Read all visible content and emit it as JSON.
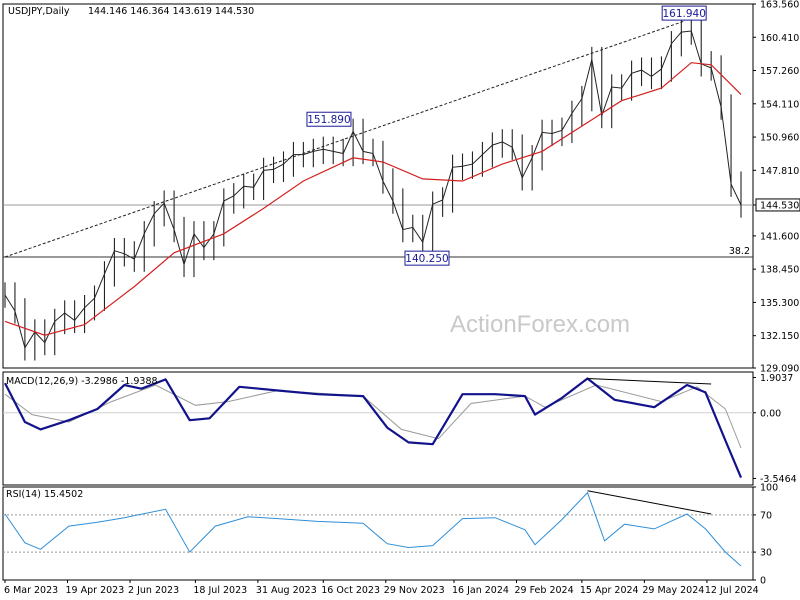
{
  "chart_data": {
    "type": "candlestick",
    "header": {
      "symbol": "USDJPY,Daily",
      "ohlc": "144.146 146.364 143.619 144.530"
    },
    "watermark": "ActionForex.com",
    "price_panel": {
      "ylim": [
        129.09,
        163.56
      ],
      "yticks": [
        "163.560",
        "160.410",
        "157.260",
        "154.110",
        "150.960",
        "147.810",
        "144.530",
        "141.600",
        "138.450",
        "135.300",
        "132.150",
        "129.090"
      ],
      "current_price": "144.530",
      "fib_level": "38.2",
      "fib_price": 139.6,
      "annotations": [
        {
          "text": "161.940",
          "x": "2024-06-26",
          "y": 161.94
        },
        {
          "text": "151.890",
          "x": "2023-10-20",
          "y": 151.89
        },
        {
          "text": "140.250",
          "x": "2023-12-28",
          "y": 140.25
        }
      ],
      "trendline": {
        "from": {
          "x": "2023-03-06",
          "y": 139.6
        },
        "to": {
          "x": "2024-06-26",
          "y": 161.94
        }
      },
      "closes": [
        {
          "x": "2023-03-06",
          "y": 136.0
        },
        {
          "x": "2023-03-13",
          "y": 134.5
        },
        {
          "x": "2023-03-20",
          "y": 131.0
        },
        {
          "x": "2023-03-27",
          "y": 132.5
        },
        {
          "x": "2023-04-03",
          "y": 131.5
        },
        {
          "x": "2023-04-10",
          "y": 133.5
        },
        {
          "x": "2023-04-17",
          "y": 134.3
        },
        {
          "x": "2023-04-24",
          "y": 133.6
        },
        {
          "x": "2023-05-01",
          "y": 134.8
        },
        {
          "x": "2023-05-08",
          "y": 135.7
        },
        {
          "x": "2023-05-15",
          "y": 138.0
        },
        {
          "x": "2023-05-22",
          "y": 140.2
        },
        {
          "x": "2023-05-29",
          "y": 139.9
        },
        {
          "x": "2023-06-05",
          "y": 139.4
        },
        {
          "x": "2023-06-12",
          "y": 141.8
        },
        {
          "x": "2023-06-19",
          "y": 143.7
        },
        {
          "x": "2023-06-26",
          "y": 144.7
        },
        {
          "x": "2023-07-03",
          "y": 142.2
        },
        {
          "x": "2023-07-10",
          "y": 138.9
        },
        {
          "x": "2023-07-17",
          "y": 141.8
        },
        {
          "x": "2023-07-24",
          "y": 140.5
        },
        {
          "x": "2023-07-31",
          "y": 141.8
        },
        {
          "x": "2023-08-07",
          "y": 144.9
        },
        {
          "x": "2023-08-14",
          "y": 145.4
        },
        {
          "x": "2023-08-21",
          "y": 146.3
        },
        {
          "x": "2023-08-28",
          "y": 146.2
        },
        {
          "x": "2023-09-04",
          "y": 147.8
        },
        {
          "x": "2023-09-11",
          "y": 147.9
        },
        {
          "x": "2023-09-18",
          "y": 148.4
        },
        {
          "x": "2023-09-25",
          "y": 149.3
        },
        {
          "x": "2023-10-02",
          "y": 149.3
        },
        {
          "x": "2023-10-09",
          "y": 149.6
        },
        {
          "x": "2023-10-16",
          "y": 149.8
        },
        {
          "x": "2023-10-23",
          "y": 149.6
        },
        {
          "x": "2023-10-30",
          "y": 149.4
        },
        {
          "x": "2023-11-06",
          "y": 151.5
        },
        {
          "x": "2023-11-13",
          "y": 149.6
        },
        {
          "x": "2023-11-20",
          "y": 149.4
        },
        {
          "x": "2023-11-27",
          "y": 146.8
        },
        {
          "x": "2023-12-04",
          "y": 144.9
        },
        {
          "x": "2023-12-11",
          "y": 142.2
        },
        {
          "x": "2023-12-18",
          "y": 142.4
        },
        {
          "x": "2023-12-25",
          "y": 141.0
        },
        {
          "x": "2024-01-01",
          "y": 144.6
        },
        {
          "x": "2024-01-08",
          "y": 145.0
        },
        {
          "x": "2024-01-15",
          "y": 148.1
        },
        {
          "x": "2024-01-22",
          "y": 148.2
        },
        {
          "x": "2024-01-29",
          "y": 148.4
        },
        {
          "x": "2024-02-05",
          "y": 149.3
        },
        {
          "x": "2024-02-12",
          "y": 150.2
        },
        {
          "x": "2024-02-19",
          "y": 150.5
        },
        {
          "x": "2024-02-26",
          "y": 150.0
        },
        {
          "x": "2024-03-04",
          "y": 147.1
        },
        {
          "x": "2024-03-11",
          "y": 149.0
        },
        {
          "x": "2024-03-18",
          "y": 151.4
        },
        {
          "x": "2024-03-25",
          "y": 151.3
        },
        {
          "x": "2024-04-01",
          "y": 151.6
        },
        {
          "x": "2024-04-08",
          "y": 153.2
        },
        {
          "x": "2024-04-15",
          "y": 154.6
        },
        {
          "x": "2024-04-22",
          "y": 158.3
        },
        {
          "x": "2024-04-29",
          "y": 153.0
        },
        {
          "x": "2024-05-06",
          "y": 155.7
        },
        {
          "x": "2024-05-13",
          "y": 155.6
        },
        {
          "x": "2024-05-20",
          "y": 157.0
        },
        {
          "x": "2024-05-27",
          "y": 157.3
        },
        {
          "x": "2024-06-03",
          "y": 156.7
        },
        {
          "x": "2024-06-10",
          "y": 157.4
        },
        {
          "x": "2024-06-17",
          "y": 159.8
        },
        {
          "x": "2024-06-24",
          "y": 160.9
        },
        {
          "x": "2024-07-01",
          "y": 161.0
        },
        {
          "x": "2024-07-08",
          "y": 157.9
        },
        {
          "x": "2024-07-15",
          "y": 157.5
        },
        {
          "x": "2024-07-22",
          "y": 153.8
        },
        {
          "x": "2024-07-29",
          "y": 146.5
        },
        {
          "x": "2024-08-05",
          "y": 144.53
        }
      ],
      "ma": [
        {
          "x": "2023-03-06",
          "y": 133.5
        },
        {
          "x": "2023-04-03",
          "y": 132.2
        },
        {
          "x": "2023-05-01",
          "y": 133.2
        },
        {
          "x": "2023-06-05",
          "y": 136.8
        },
        {
          "x": "2023-07-03",
          "y": 140.0
        },
        {
          "x": "2023-08-07",
          "y": 141.8
        },
        {
          "x": "2023-09-04",
          "y": 144.2
        },
        {
          "x": "2023-10-02",
          "y": 146.8
        },
        {
          "x": "2023-11-06",
          "y": 149.0
        },
        {
          "x": "2023-11-27",
          "y": 148.6
        },
        {
          "x": "2023-12-25",
          "y": 147.0
        },
        {
          "x": "2024-01-22",
          "y": 146.8
        },
        {
          "x": "2024-02-19",
          "y": 148.4
        },
        {
          "x": "2024-03-18",
          "y": 149.6
        },
        {
          "x": "2024-04-15",
          "y": 152.0
        },
        {
          "x": "2024-05-13",
          "y": 154.4
        },
        {
          "x": "2024-06-10",
          "y": 155.6
        },
        {
          "x": "2024-07-01",
          "y": 158.0
        },
        {
          "x": "2024-07-15",
          "y": 157.8
        },
        {
          "x": "2024-08-05",
          "y": 155.0
        }
      ]
    },
    "macd_panel": {
      "title": "MACD(12,26,9) -3.2986 -1.9388",
      "ylim": [
        -3.9,
        2.2
      ],
      "yticks": [
        "1.9037",
        "0.00",
        "-3.5464"
      ],
      "divergence_line": {
        "from": {
          "x": "2024-04-19",
          "y": 1.85
        },
        "to": {
          "x": "2024-07-15",
          "y": 1.55
        }
      },
      "macd": [
        {
          "x": "2023-03-06",
          "y": 1.6
        },
        {
          "x": "2023-03-20",
          "y": -0.5
        },
        {
          "x": "2023-03-31",
          "y": -0.9
        },
        {
          "x": "2023-04-20",
          "y": -0.4
        },
        {
          "x": "2023-05-10",
          "y": 0.2
        },
        {
          "x": "2023-05-29",
          "y": 1.5
        },
        {
          "x": "2023-06-10",
          "y": 1.3
        },
        {
          "x": "2023-06-27",
          "y": 1.8
        },
        {
          "x": "2023-07-14",
          "y": -0.4
        },
        {
          "x": "2023-07-28",
          "y": -0.3
        },
        {
          "x": "2023-08-18",
          "y": 1.4
        },
        {
          "x": "2023-09-14",
          "y": 1.2
        },
        {
          "x": "2023-10-12",
          "y": 1.0
        },
        {
          "x": "2023-11-13",
          "y": 0.9
        },
        {
          "x": "2023-11-30",
          "y": -0.8
        },
        {
          "x": "2023-12-15",
          "y": -1.6
        },
        {
          "x": "2024-01-01",
          "y": -1.7
        },
        {
          "x": "2024-01-22",
          "y": 1.0
        },
        {
          "x": "2024-02-14",
          "y": 1.0
        },
        {
          "x": "2024-03-06",
          "y": 0.9
        },
        {
          "x": "2024-03-13",
          "y": -0.1
        },
        {
          "x": "2024-04-01",
          "y": 0.8
        },
        {
          "x": "2024-04-19",
          "y": 1.85
        },
        {
          "x": "2024-05-08",
          "y": 0.7
        },
        {
          "x": "2024-06-05",
          "y": 0.3
        },
        {
          "x": "2024-06-28",
          "y": 1.5
        },
        {
          "x": "2024-07-11",
          "y": 1.1
        },
        {
          "x": "2024-07-25",
          "y": -1.5
        },
        {
          "x": "2024-08-05",
          "y": -3.5
        }
      ],
      "signal": [
        {
          "x": "2023-03-06",
          "y": 1.0
        },
        {
          "x": "2023-03-25",
          "y": -0.1
        },
        {
          "x": "2023-04-20",
          "y": -0.5
        },
        {
          "x": "2023-05-20",
          "y": 0.6
        },
        {
          "x": "2023-06-20",
          "y": 1.5
        },
        {
          "x": "2023-07-18",
          "y": 0.4
        },
        {
          "x": "2023-08-10",
          "y": 0.6
        },
        {
          "x": "2023-09-14",
          "y": 1.2
        },
        {
          "x": "2023-11-13",
          "y": 0.9
        },
        {
          "x": "2023-12-10",
          "y": -0.9
        },
        {
          "x": "2024-01-05",
          "y": -1.4
        },
        {
          "x": "2024-01-28",
          "y": 0.5
        },
        {
          "x": "2024-03-06",
          "y": 0.9
        },
        {
          "x": "2024-03-20",
          "y": 0.3
        },
        {
          "x": "2024-04-25",
          "y": 1.5
        },
        {
          "x": "2024-06-10",
          "y": 0.6
        },
        {
          "x": "2024-07-05",
          "y": 1.4
        },
        {
          "x": "2024-07-25",
          "y": 0.2
        },
        {
          "x": "2024-08-05",
          "y": -1.9
        }
      ]
    },
    "rsi_panel": {
      "title": "RSI(14) 15.4502",
      "ylim": [
        0,
        100
      ],
      "yticks": [
        "100",
        "70",
        "30",
        "0"
      ],
      "levels": [
        70,
        30
      ],
      "divergence_line": {
        "from": {
          "x": "2024-04-19",
          "y": 96
        },
        "to": {
          "x": "2024-07-15",
          "y": 71
        }
      },
      "rsi": [
        {
          "x": "2023-03-06",
          "y": 71
        },
        {
          "x": "2023-03-20",
          "y": 40
        },
        {
          "x": "2023-03-31",
          "y": 33
        },
        {
          "x": "2023-04-20",
          "y": 58
        },
        {
          "x": "2023-05-10",
          "y": 62
        },
        {
          "x": "2023-05-29",
          "y": 67
        },
        {
          "x": "2023-06-27",
          "y": 76
        },
        {
          "x": "2023-07-14",
          "y": 30
        },
        {
          "x": "2023-08-01",
          "y": 58
        },
        {
          "x": "2023-08-24",
          "y": 68
        },
        {
          "x": "2023-09-14",
          "y": 66
        },
        {
          "x": "2023-10-12",
          "y": 63
        },
        {
          "x": "2023-11-13",
          "y": 61
        },
        {
          "x": "2023-11-30",
          "y": 39
        },
        {
          "x": "2023-12-15",
          "y": 35
        },
        {
          "x": "2024-01-01",
          "y": 37
        },
        {
          "x": "2024-01-22",
          "y": 66
        },
        {
          "x": "2024-02-14",
          "y": 67
        },
        {
          "x": "2024-03-06",
          "y": 54
        },
        {
          "x": "2024-03-13",
          "y": 38
        },
        {
          "x": "2024-04-01",
          "y": 65
        },
        {
          "x": "2024-04-19",
          "y": 94
        },
        {
          "x": "2024-05-01",
          "y": 42
        },
        {
          "x": "2024-05-15",
          "y": 60
        },
        {
          "x": "2024-06-05",
          "y": 55
        },
        {
          "x": "2024-06-28",
          "y": 71
        },
        {
          "x": "2024-07-11",
          "y": 55
        },
        {
          "x": "2024-07-25",
          "y": 30
        },
        {
          "x": "2024-08-05",
          "y": 15
        }
      ]
    },
    "x_axis": {
      "start": "2023-03-06",
      "end": "2024-08-05",
      "ticks": [
        {
          "label": "6 Mar 2023",
          "x": "2023-03-06"
        },
        {
          "label": "19 Apr 2023",
          "x": "2023-04-19"
        },
        {
          "label": "2 Jun 2023",
          "x": "2023-06-02"
        },
        {
          "label": "18 Jul 2023",
          "x": "2023-07-18"
        },
        {
          "label": "31 Aug 2023",
          "x": "2023-08-31"
        },
        {
          "label": "16 Oct 2023",
          "x": "2023-10-16"
        },
        {
          "label": "29 Nov 2023",
          "x": "2023-11-29"
        },
        {
          "label": "16 Jan 2024",
          "x": "2024-01-16"
        },
        {
          "label": "29 Feb 2024",
          "x": "2024-02-29"
        },
        {
          "label": "15 Apr 2024",
          "x": "2024-04-15"
        },
        {
          "label": "29 May 2024",
          "x": "2024-05-29"
        },
        {
          "label": "12 Jul 2024",
          "x": "2024-07-12"
        }
      ]
    },
    "colors": {
      "price": "#222222",
      "ma": "#d42020",
      "macd": "#12128c",
      "signal": "#999999",
      "rsi": "#2f8fd8",
      "annotation_border": "#1a1a99",
      "frame": "#000000"
    }
  }
}
